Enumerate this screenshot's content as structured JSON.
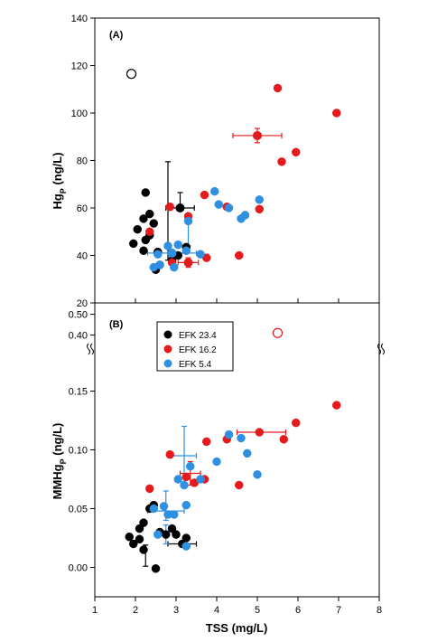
{
  "colors": {
    "efk_23_4": "#000000",
    "efk_16_2": "#e41a1c",
    "efk_5_4": "#2f8fe0",
    "axis": "#000000",
    "background": "#ffffff"
  },
  "shared_x": {
    "label": "TSS (mg/L)",
    "range": [
      1,
      8
    ],
    "ticks": [
      "1",
      "2",
      "3",
      "4",
      "5",
      "6",
      "7",
      "8"
    ]
  },
  "legend": {
    "entries": [
      {
        "label": "EFK 23.4",
        "color_key": "efk_23_4"
      },
      {
        "label": "EFK 16.2",
        "color_key": "efk_16_2"
      },
      {
        "label": "EFK 5.4",
        "color_key": "efk_5_4"
      }
    ],
    "placement": "top-left of panel B"
  },
  "chart_data": [
    {
      "type": "scatter",
      "panel_label": "(A)",
      "xlabel": "TSS (mg/L)",
      "ylabel_main": "Hg",
      "ylabel_sub": "P",
      "ylabel_tail": " (ng/L)",
      "xlim": [
        1,
        8
      ],
      "ylim": [
        20,
        140
      ],
      "y_ticks": [
        20,
        40,
        60,
        80,
        100,
        120,
        140
      ],
      "series": [
        {
          "name": "EFK 23.4",
          "color_key": "efk_23_4",
          "points": [
            {
              "x": 2.25,
              "y": 66.5
            },
            {
              "x": 2.2,
              "y": 55.5
            },
            {
              "x": 2.35,
              "y": 57.5
            },
            {
              "x": 2.45,
              "y": 53.5
            },
            {
              "x": 2.05,
              "y": 51
            },
            {
              "x": 2.35,
              "y": 48.5
            },
            {
              "x": 2.25,
              "y": 46.5
            },
            {
              "x": 1.95,
              "y": 45
            },
            {
              "x": 2.2,
              "y": 42
            },
            {
              "x": 2.55,
              "y": 41.5
            },
            {
              "x": 2.6,
              "y": 36
            },
            {
              "x": 2.5,
              "y": 34
            },
            {
              "x": 2.9,
              "y": 38
            },
            {
              "x": 3.25,
              "y": 43.5
            },
            {
              "x": 3.05,
              "y": 40
            }
          ]
        },
        {
          "name": "EFK 16.2",
          "color_key": "efk_16_2",
          "points": [
            {
              "x": 2.35,
              "y": 50
            },
            {
              "x": 2.85,
              "y": 60.5
            },
            {
              "x": 3.3,
              "y": 56.5
            },
            {
              "x": 3.7,
              "y": 65.5
            },
            {
              "x": 2.9,
              "y": 37
            },
            {
              "x": 3.75,
              "y": 39
            },
            {
              "x": 4.25,
              "y": 60.5
            },
            {
              "x": 4.55,
              "y": 40
            },
            {
              "x": 5.05,
              "y": 59.5
            },
            {
              "x": 5.6,
              "y": 79.5
            },
            {
              "x": 5.95,
              "y": 83.5
            },
            {
              "x": 5.5,
              "y": 110.5
            },
            {
              "x": 6.95,
              "y": 100
            }
          ]
        },
        {
          "name": "EFK 5.4",
          "color_key": "efk_5_4",
          "points": [
            {
              "x": 3.3,
              "y": 54.5
            },
            {
              "x": 3.25,
              "y": 42
            },
            {
              "x": 3.05,
              "y": 44.5
            },
            {
              "x": 2.8,
              "y": 44
            },
            {
              "x": 2.55,
              "y": 40.5
            },
            {
              "x": 3.6,
              "y": 40.5
            },
            {
              "x": 3.3,
              "y": 37
            },
            {
              "x": 2.95,
              "y": 35
            },
            {
              "x": 2.6,
              "y": 36
            },
            {
              "x": 2.45,
              "y": 35
            },
            {
              "x": 3.95,
              "y": 67
            },
            {
              "x": 4.05,
              "y": 61.5
            },
            {
              "x": 4.3,
              "y": 60
            },
            {
              "x": 4.6,
              "y": 55.5
            },
            {
              "x": 4.7,
              "y": 57
            },
            {
              "x": 5.05,
              "y": 63.5
            }
          ]
        }
      ],
      "error_bars": [
        {
          "series": "EFK 23.4",
          "x": 3.1,
          "y": 60,
          "x_err": 0.35,
          "y_err_low": 0,
          "y_err_high": 6.5
        },
        {
          "series": "EFK 23.4",
          "x": 2.8,
          "y": 57,
          "x_err": 0,
          "y_err_low": 19,
          "y_err_high": 22.5
        },
        {
          "series": "EFK 16.2",
          "x": 5.0,
          "y": 90.5,
          "x_err": 0.6,
          "y_err_low": 3,
          "y_err_high": 3
        },
        {
          "series": "EFK 16.2",
          "x": 3.3,
          "y": 37,
          "x_err": 0.25,
          "y_err_low": 2,
          "y_err_high": 2
        },
        {
          "series": "EFK 5.4",
          "x": 2.9,
          "y": 41,
          "x_err": 0.6,
          "y_err_low": 0,
          "y_err_high": 0
        },
        {
          "series": "EFK 5.4",
          "x": 3.3,
          "y": 50,
          "x_err": 0,
          "y_err_low": 6,
          "y_err_high": 5
        }
      ],
      "highlight_points": [
        {
          "series": "EFK 23.4",
          "x": 3.1,
          "y": 60
        },
        {
          "series": "EFK 16.2",
          "x": 5.0,
          "y": 90.5
        },
        {
          "series": "EFK 16.2",
          "x": 3.3,
          "y": 37
        },
        {
          "series": "EFK 5.4",
          "x": 2.9,
          "y": 41
        }
      ],
      "open_markers": [
        {
          "series": "EFK 23.4",
          "x": 1.9,
          "y": 116.5
        }
      ]
    },
    {
      "type": "scatter",
      "panel_label": "(B)",
      "xlabel": "TSS (mg/L)",
      "ylabel_main": "MMHg",
      "ylabel_sub": "P",
      "ylabel_tail": " (ng/L)",
      "xlim": [
        1,
        8
      ],
      "ylim": [
        -0.025,
        0.175
      ],
      "y_ticks": [
        0.0,
        0.05,
        0.1,
        0.15
      ],
      "y_tick_labels": [
        "0.00",
        "0.05",
        "0.10",
        "0.15"
      ],
      "y_break": {
        "upper_ticks": [
          "0.40",
          "0.50"
        ],
        "upper_range": [
          0.35,
          0.52
        ]
      },
      "series": [
        {
          "name": "EFK 23.4",
          "color_key": "efk_23_4",
          "points": [
            {
              "x": 1.85,
              "y": 0.026
            },
            {
              "x": 1.95,
              "y": 0.02
            },
            {
              "x": 2.1,
              "y": 0.024
            },
            {
              "x": 2.1,
              "y": 0.033
            },
            {
              "x": 2.2,
              "y": 0.038
            },
            {
              "x": 2.35,
              "y": 0.05
            },
            {
              "x": 2.45,
              "y": 0.053
            },
            {
              "x": 2.6,
              "y": 0.03
            },
            {
              "x": 2.75,
              "y": 0.028
            },
            {
              "x": 2.9,
              "y": 0.033
            },
            {
              "x": 3.0,
              "y": 0.028
            },
            {
              "x": 3.15,
              "y": 0.02
            },
            {
              "x": 3.25,
              "y": 0.025
            },
            {
              "x": 2.2,
              "y": 0.015
            },
            {
              "x": 2.5,
              "y": -0.001
            }
          ]
        },
        {
          "name": "EFK 16.2",
          "color_key": "efk_16_2",
          "points": [
            {
              "x": 2.35,
              "y": 0.067
            },
            {
              "x": 2.85,
              "y": 0.096
            },
            {
              "x": 3.25,
              "y": 0.077
            },
            {
              "x": 3.45,
              "y": 0.072
            },
            {
              "x": 3.7,
              "y": 0.075
            },
            {
              "x": 3.75,
              "y": 0.107
            },
            {
              "x": 4.25,
              "y": 0.109
            },
            {
              "x": 4.55,
              "y": 0.07
            },
            {
              "x": 5.05,
              "y": 0.115
            },
            {
              "x": 5.65,
              "y": 0.109
            },
            {
              "x": 5.95,
              "y": 0.123
            },
            {
              "x": 6.95,
              "y": 0.138
            }
          ]
        },
        {
          "name": "EFK 5.4",
          "color_key": "efk_5_4",
          "points": [
            {
              "x": 2.45,
              "y": 0.05
            },
            {
              "x": 2.55,
              "y": 0.028
            },
            {
              "x": 2.7,
              "y": 0.052
            },
            {
              "x": 2.8,
              "y": 0.045
            },
            {
              "x": 2.95,
              "y": 0.045
            },
            {
              "x": 3.05,
              "y": 0.075
            },
            {
              "x": 3.2,
              "y": 0.07
            },
            {
              "x": 3.25,
              "y": 0.053
            },
            {
              "x": 3.35,
              "y": 0.086
            },
            {
              "x": 3.6,
              "y": 0.075
            },
            {
              "x": 4.0,
              "y": 0.09
            },
            {
              "x": 4.3,
              "y": 0.113
            },
            {
              "x": 4.6,
              "y": 0.11
            },
            {
              "x": 4.75,
              "y": 0.097
            },
            {
              "x": 5.0,
              "y": 0.079
            },
            {
              "x": 3.25,
              "y": 0.018
            }
          ]
        }
      ],
      "error_bars": [
        {
          "series": "EFK 23.4",
          "x": 2.25,
          "y": 0.01,
          "x_err": 0,
          "y_err_low": 0.009,
          "y_err_high": 0.009
        },
        {
          "series": "EFK 23.4",
          "x": 3.15,
          "y": 0.02,
          "x_err": 0.35,
          "y_err_low": 0,
          "y_err_high": 0
        },
        {
          "series": "EFK 16.2",
          "x": 3.35,
          "y": 0.08,
          "x_err": 0.25,
          "y_err_low": 0.01,
          "y_err_high": 0.01
        },
        {
          "series": "EFK 16.2",
          "x": 5.1,
          "y": 0.115,
          "x_err": 0.6,
          "y_err_low": 0,
          "y_err_high": 0
        },
        {
          "series": "EFK 5.4",
          "x": 3.2,
          "y": 0.095,
          "x_err": 0.3,
          "y_err_low": 0.025,
          "y_err_high": 0.025
        },
        {
          "series": "EFK 5.4",
          "x": 2.75,
          "y": 0.048,
          "x_err": 0.45,
          "y_err_low": 0.008,
          "y_err_high": 0.017
        },
        {
          "series": "EFK 5.4",
          "x": 2.75,
          "y": 0.028,
          "x_err": 0,
          "y_err_low": 0.008,
          "y_err_high": 0.008
        }
      ],
      "open_markers": [
        {
          "series": "EFK 16.2",
          "x": 5.5,
          "y_upper": 0.41
        }
      ]
    }
  ]
}
